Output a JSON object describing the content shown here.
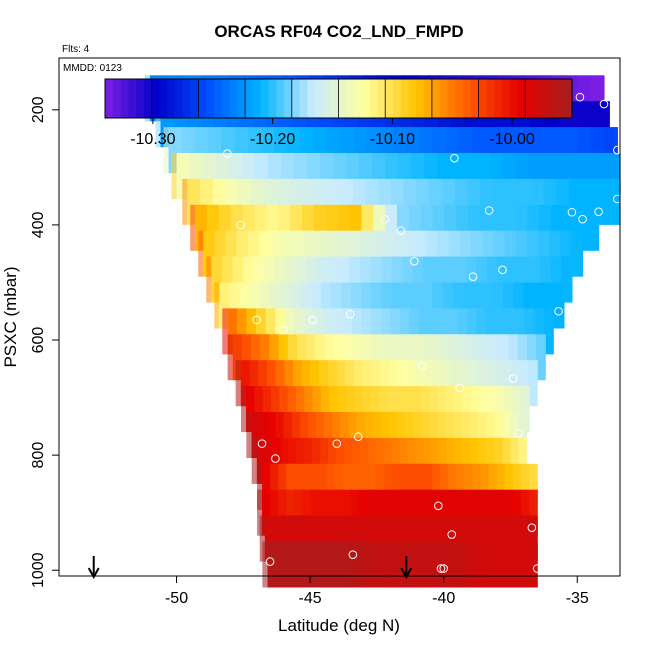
{
  "chart_data": {
    "type": "heatmap",
    "title": "ORCAS RF04 CO2_LND_FMPD",
    "flights_note": "Flts: 4",
    "date_note": "MMDD: 0123",
    "xlabel": "Latitude (deg N)",
    "ylabel": "PSXC (mbar)",
    "xlim": [
      -54.4,
      -33.4
    ],
    "ylim": [
      1010,
      110
    ],
    "x_ticks": [
      -50,
      -45,
      -40,
      -35
    ],
    "y_ticks": [
      200,
      400,
      600,
      800,
      1000
    ],
    "colorbar": {
      "min": -10.34,
      "max": -9.95,
      "ticks": [
        -10.3,
        -10.2,
        -10.1,
        -10.0
      ],
      "tick_labels": [
        "-10.30",
        "-10.20",
        "-10.10",
        "-10.00"
      ],
      "colors": [
        "#7e1fe6",
        "#0000c8",
        "#0050ff",
        "#00b4ff",
        "#c8ebff",
        "#ffffa0",
        "#ffc400",
        "#ff5a00",
        "#e60000",
        "#a51f1f"
      ]
    },
    "rows": [
      {
        "p": 180,
        "x0": -51.0,
        "x1": -34.0,
        "values": [
          -10.23,
          -10.23,
          -10.24,
          -10.25,
          -10.27,
          -10.29,
          -10.3,
          -10.31,
          -10.32,
          -10.33,
          -10.34
        ]
      },
      {
        "p": 225,
        "x0": -50.6,
        "x1": -33.8,
        "values": [
          -10.22,
          -10.23,
          -10.24,
          -10.25,
          -10.26,
          -10.27,
          -10.28,
          -10.29,
          -10.29,
          -10.3,
          -10.3
        ]
      },
      {
        "p": 270,
        "x0": -50.3,
        "x1": -33.5,
        "values": [
          -10.18,
          -10.19,
          -10.2,
          -10.21,
          -10.22,
          -10.23,
          -10.24,
          -10.25,
          -10.25,
          -10.25,
          -10.26
        ]
      },
      {
        "p": 315,
        "x0": -50.0,
        "x1": -33.4,
        "values": [
          -10.13,
          -10.15,
          -10.17,
          -10.18,
          -10.19,
          -10.2,
          -10.21,
          -10.21,
          -10.22,
          -10.22,
          -10.22
        ]
      },
      {
        "p": 360,
        "x0": -49.6,
        "x1": -33.4,
        "values": [
          -10.1,
          -10.13,
          -10.15,
          -10.16,
          -10.17,
          -10.18,
          -10.19,
          -10.2,
          -10.2,
          -10.21,
          -10.21
        ]
      },
      {
        "p": 405,
        "x0": -49.3,
        "x1": -34.2,
        "values": [
          -10.07,
          -10.1,
          -10.12,
          -10.09,
          -10.08,
          -10.18,
          -10.19,
          -10.2,
          -10.2,
          -10.21,
          -10.21
        ]
      },
      {
        "p": 450,
        "x0": -49.0,
        "x1": -34.8,
        "values": [
          -10.08,
          -10.11,
          -10.13,
          -10.14,
          -10.15,
          -10.16,
          -10.17,
          -10.18,
          -10.19,
          -10.2,
          -10.21
        ]
      },
      {
        "p": 495,
        "x0": -48.7,
        "x1": -35.2,
        "values": [
          -10.09,
          -10.12,
          -10.14,
          -10.16,
          -10.17,
          -10.18,
          -10.19,
          -10.19,
          -10.2,
          -10.2,
          -10.21
        ]
      },
      {
        "p": 540,
        "x0": -48.4,
        "x1": -35.5,
        "values": [
          -10.11,
          -10.13,
          -10.15,
          -10.17,
          -10.18,
          -10.19,
          -10.19,
          -10.2,
          -10.2,
          -10.21,
          -10.21
        ]
      },
      {
        "p": 585,
        "x0": -48.1,
        "x1": -35.9,
        "values": [
          -10.04,
          -10.09,
          -10.14,
          -10.16,
          -10.17,
          -10.18,
          -10.19,
          -10.19,
          -10.2,
          -10.2,
          -10.21
        ]
      },
      {
        "p": 630,
        "x0": -47.9,
        "x1": -36.2,
        "values": [
          -10.02,
          -10.05,
          -10.1,
          -10.12,
          -10.13,
          -10.14,
          -10.14,
          -10.15,
          -10.16,
          -10.17,
          -10.19
        ]
      },
      {
        "p": 675,
        "x0": -47.6,
        "x1": -36.5,
        "values": [
          -10.0,
          -10.03,
          -10.07,
          -10.09,
          -10.11,
          -10.12,
          -10.13,
          -10.14,
          -10.15,
          -10.16,
          -10.17
        ]
      },
      {
        "p": 720,
        "x0": -47.4,
        "x1": -36.8,
        "values": [
          -9.99,
          -10.02,
          -10.05,
          -10.08,
          -10.09,
          -10.1,
          -10.1,
          -10.11,
          -10.12,
          -10.13,
          -10.15
        ]
      },
      {
        "p": 765,
        "x0": -47.2,
        "x1": -36.9,
        "values": [
          -9.98,
          -10.0,
          -10.03,
          -10.05,
          -10.07,
          -10.08,
          -10.09,
          -10.1,
          -10.11,
          -10.12,
          -10.15
        ]
      },
      {
        "p": 810,
        "x0": -47.0,
        "x1": -36.9,
        "values": [
          -9.98,
          -10.0,
          -10.01,
          -10.03,
          -10.04,
          -10.05,
          -10.06,
          -10.07,
          -10.08,
          -10.09,
          -10.12
        ]
      },
      {
        "p": 855,
        "x0": -46.8,
        "x1": -36.5,
        "values": [
          -9.99,
          -10.03,
          -10.03,
          -10.04,
          -10.04,
          -10.03,
          -10.03,
          -10.05,
          -10.06,
          -10.08,
          -10.1
        ]
      },
      {
        "p": 900,
        "x0": -46.8,
        "x1": -36.5,
        "values": [
          -9.99,
          -10.01,
          -10.0,
          -10.0,
          -9.99,
          -9.99,
          -9.99,
          -9.99,
          -9.99,
          -9.99,
          -10.01
        ]
      },
      {
        "p": 945,
        "x0": -46.7,
        "x1": -36.5,
        "values": [
          -9.98,
          -9.98,
          -9.98,
          -9.98,
          -9.98,
          -9.98,
          -9.98,
          -9.98,
          -9.98,
          -9.98,
          -9.98
        ]
      },
      {
        "p": 990,
        "x0": -46.6,
        "x1": -36.5,
        "values": [
          -9.96,
          -9.96,
          -9.96,
          -9.96,
          -9.97,
          -9.97,
          -9.97,
          -9.97,
          -9.98,
          -9.98,
          -9.98
        ]
      }
    ],
    "points": [
      [
        -50.9,
        178
      ],
      [
        -50.5,
        178
      ],
      [
        -50.1,
        178
      ],
      [
        -49.7,
        178
      ],
      [
        -49.3,
        178
      ],
      [
        -48.9,
        178
      ],
      [
        -48.6,
        178
      ],
      [
        -48.5,
        184
      ],
      [
        -38.7,
        185
      ],
      [
        -38.0,
        178
      ],
      [
        -37.4,
        178
      ],
      [
        -36.7,
        178
      ],
      [
        -36.0,
        178
      ],
      [
        -35.4,
        178
      ],
      [
        -34.9,
        178
      ],
      [
        -34.0,
        190
      ],
      [
        -48.1,
        276
      ],
      [
        -39.6,
        284
      ],
      [
        -33.5,
        270
      ],
      [
        -33.5,
        355
      ],
      [
        -47.6,
        400
      ],
      [
        -42.2,
        390
      ],
      [
        -41.6,
        410
      ],
      [
        -38.3,
        375
      ],
      [
        -35.2,
        378
      ],
      [
        -34.8,
        390
      ],
      [
        -34.2,
        377
      ],
      [
        -41.1,
        463
      ],
      [
        -38.9,
        490
      ],
      [
        -37.8,
        478
      ],
      [
        -47.0,
        565
      ],
      [
        -46.0,
        583
      ],
      [
        -44.9,
        565
      ],
      [
        -43.5,
        555
      ],
      [
        -35.7,
        550
      ],
      [
        -40.8,
        645
      ],
      [
        -39.4,
        683
      ],
      [
        -37.4,
        667
      ],
      [
        -46.8,
        780
      ],
      [
        -46.3,
        806
      ],
      [
        -44.0,
        780
      ],
      [
        -43.2,
        768
      ],
      [
        -37.2,
        762
      ],
      [
        -40.2,
        888
      ],
      [
        -39.7,
        938
      ],
      [
        -36.7,
        926
      ],
      [
        -46.5,
        985
      ],
      [
        -43.4,
        973
      ],
      [
        -40.0,
        997
      ],
      [
        -40.1,
        997
      ],
      [
        -36.5,
        997
      ]
    ],
    "arrows": [
      -53.1,
      -41.4
    ]
  }
}
